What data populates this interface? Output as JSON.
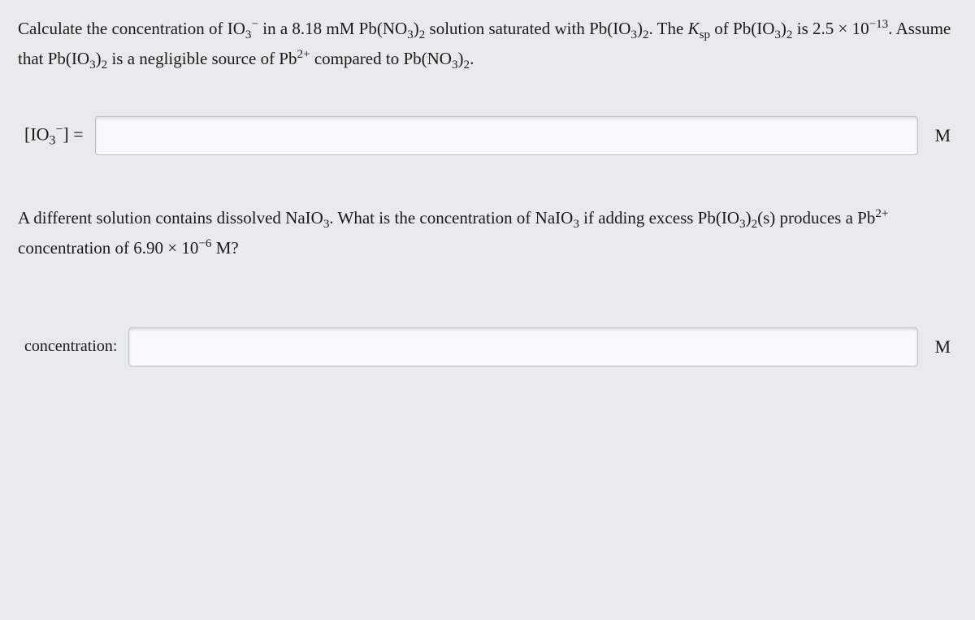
{
  "question1": {
    "text_parts": {
      "p1": "Calculate the concentration of IO",
      "sub1": "3",
      "sup1": "−",
      "p2": " in a 8.18 mM Pb(NO",
      "sub2": "3",
      "p3": ")",
      "sub3": "2",
      "p4": " solution saturated with Pb(IO",
      "sub4": "3",
      "p5": ")",
      "sub5": "2",
      "p6": ". The ",
      "ksp_k": "K",
      "ksp_sub": "sp",
      "p7": " of Pb(IO",
      "sub6": "3",
      "p8": ")",
      "sub7": "2",
      "p9": " is 2.5 × 10",
      "sup2": "−13",
      "p10": ". Assume that Pb(IO",
      "sub8": "3",
      "p11": ")",
      "sub9": "2",
      "p12": " is a negligible source of Pb",
      "sup3": "2+",
      "p13": " compared to Pb(NO",
      "sub10": "3",
      "p14": ")",
      "sub11": "2",
      "p15": "."
    }
  },
  "answer1": {
    "label_parts": {
      "p1": "[IO",
      "sub1": "3",
      "sup1": "−",
      "p2": "] ="
    },
    "unit": "M"
  },
  "question2": {
    "text_parts": {
      "p1": "A different solution contains dissolved NaIO",
      "sub1": "3",
      "p2": ". What is the concentration of NaIO",
      "sub2": "3",
      "p3": " if adding excess Pb(IO",
      "sub3": "3",
      "p4": ")",
      "sub4": "2",
      "p5": "(s) produces a Pb",
      "sup1": "2+",
      "p6": " concentration of 6.90 × 10",
      "sup2": "−6",
      "p7": " M?"
    }
  },
  "answer2": {
    "label": "concentration:",
    "unit": "M"
  },
  "colors": {
    "background": "#e8ebec",
    "text": "#1a1a1a",
    "input_bg": "#f8f9fa",
    "input_border": "#b8bfc4"
  },
  "typography": {
    "body_fontsize": 21,
    "label_fontsize": 22,
    "font_family": "Georgia, Times New Roman, serif"
  }
}
